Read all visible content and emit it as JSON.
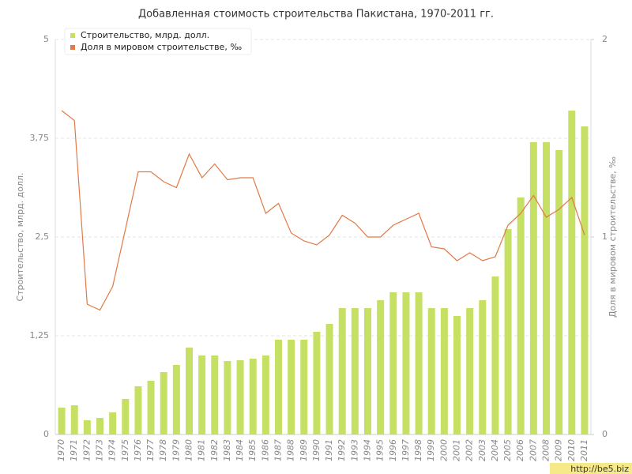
{
  "chart_data": {
    "type": "bar_line",
    "title": "Добавленная стоимость строительства Пакистана, 1970-2011 гг.",
    "ylabel": "Строительство, млрд. долл.",
    "y2label": "Доля в мировом строительстве, ‰",
    "watermark": "http://be5.biz",
    "categories": [
      "1970",
      "1971",
      "1972",
      "1973",
      "1974",
      "1975",
      "1976",
      "1977",
      "1978",
      "1979",
      "1980",
      "1981",
      "1982",
      "1983",
      "1984",
      "1985",
      "1986",
      "1987",
      "1988",
      "1989",
      "1990",
      "1991",
      "1992",
      "1993",
      "1994",
      "1995",
      "1996",
      "1997",
      "1998",
      "1999",
      "2000",
      "2001",
      "2002",
      "2003",
      "2004",
      "2005",
      "2006",
      "2007",
      "2008",
      "2009",
      "2010",
      "2011"
    ],
    "series": [
      {
        "name": "Строительство, млрд. долл.",
        "color": "#c5e063",
        "type": "bar",
        "values": [
          0.34,
          0.37,
          0.18,
          0.21,
          0.28,
          0.45,
          0.61,
          0.68,
          0.79,
          0.88,
          1.1,
          1.0,
          1.0,
          0.93,
          0.94,
          0.96,
          1.0,
          1.2,
          1.2,
          1.2,
          1.3,
          1.4,
          1.6,
          1.6,
          1.6,
          1.7,
          1.8,
          1.8,
          1.8,
          1.6,
          1.6,
          1.5,
          1.6,
          1.7,
          2.0,
          2.6,
          3.0,
          3.7,
          3.7,
          3.6,
          4.1,
          3.9
        ]
      },
      {
        "name": "Доля в мировом строительстве, ‰",
        "color": "#e07a46",
        "type": "line",
        "axis": "y2",
        "values": [
          1.64,
          1.59,
          0.66,
          0.63,
          0.75,
          1.04,
          1.33,
          1.33,
          1.28,
          1.25,
          1.42,
          1.3,
          1.37,
          1.29,
          1.3,
          1.3,
          1.12,
          1.17,
          1.02,
          0.98,
          0.96,
          1.01,
          1.11,
          1.07,
          1.0,
          1.0,
          1.06,
          1.09,
          1.12,
          0.95,
          0.94,
          0.88,
          0.92,
          0.88,
          0.9,
          1.06,
          1.12,
          1.21,
          1.1,
          1.14,
          1.2,
          1.01
        ]
      }
    ],
    "ylim": [
      0,
      5
    ],
    "yticks": [
      0,
      {
        "value": 1.25,
        "label": "1,25"
      },
      {
        "value": 2.5,
        "label": "2,5"
      },
      {
        "value": 3.75,
        "label": "3,75"
      },
      5
    ],
    "y2lim": [
      0,
      2
    ],
    "y2ticks": [
      0,
      1,
      2
    ],
    "grid": true,
    "legend": "top-left"
  }
}
